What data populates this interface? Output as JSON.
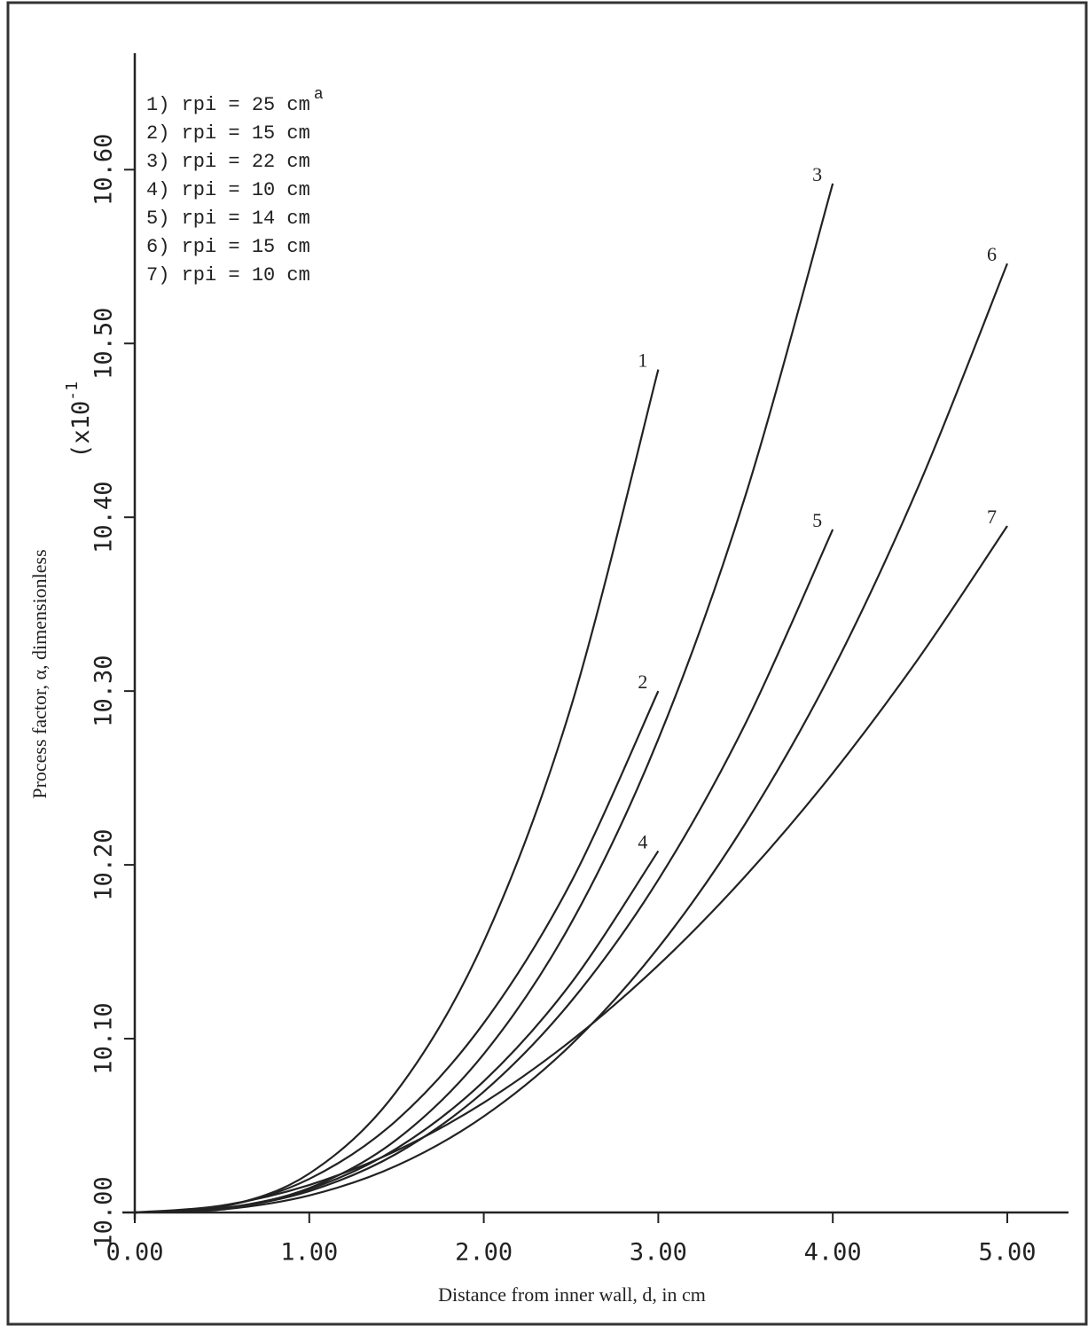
{
  "chart_data": {
    "type": "line",
    "x_label": "Distance from inner wall, d, in cm",
    "y_label": "Process factor, α, dimensionless",
    "y_multiplier": "(x10",
    "y_multiplier_exponent": "-1",
    "legend_superscript": "a",
    "xlim": [
      0,
      5.3
    ],
    "ylim": [
      10,
      10.667
    ],
    "xticks": [
      {
        "value": 0,
        "label": "0.00"
      },
      {
        "value": 1,
        "label": "1.00"
      },
      {
        "value": 2,
        "label": "2.00"
      },
      {
        "value": 3,
        "label": "3.00"
      },
      {
        "value": 4,
        "label": "4.00"
      },
      {
        "value": 5,
        "label": "5.00"
      }
    ],
    "yticks": [
      {
        "value": 10,
        "label": "10.00"
      },
      {
        "value": 10.1,
        "label": "10.10"
      },
      {
        "value": 10.2,
        "label": "10.20"
      },
      {
        "value": 10.3,
        "label": "10.30"
      },
      {
        "value": 10.4,
        "label": "10.40"
      },
      {
        "value": 10.5,
        "label": "10.50"
      },
      {
        "value": 10.6,
        "label": "10.60"
      }
    ],
    "series": [
      {
        "name": "1) rpi = 25 cm",
        "label": "1",
        "color": "#222",
        "x": [
          0,
          0.5,
          1,
          1.5,
          2,
          2.5,
          3
        ],
        "values": [
          10,
          10.0032,
          10.0224,
          10.0697,
          10.1558,
          10.291,
          10.485
        ]
      },
      {
        "name": "2) rpi = 15 cm",
        "label": "2",
        "color": "#222",
        "x": [
          0,
          0.5,
          1,
          1.5,
          2,
          2.5,
          3
        ],
        "values": [
          10,
          10.0034,
          10.0193,
          10.053,
          10.109,
          10.19,
          10.3
        ]
      },
      {
        "name": "3) rpi = 22 cm",
        "label": "3",
        "color": "#222",
        "x": [
          0,
          0.5,
          1,
          1.5,
          2,
          2.5,
          3,
          3.5,
          4
        ],
        "values": [
          10,
          10.0022,
          10.014,
          10.0419,
          10.0912,
          10.1664,
          10.2723,
          10.4126,
          10.592
        ]
      },
      {
        "name": "4) rpi = 10 cm",
        "label": "4",
        "color": "#222",
        "x": [
          0,
          0.5,
          1,
          1.5,
          2,
          2.5,
          3
        ],
        "values": [
          10,
          10.0024,
          10.0134,
          10.0368,
          10.0755,
          10.1319,
          10.208
        ]
      },
      {
        "name": "5) rpi = 14 cm",
        "label": "5",
        "color": "#222",
        "x": [
          0,
          0.5,
          1,
          1.5,
          2,
          2.5,
          3,
          3.5,
          4
        ],
        "values": [
          10,
          10.0022,
          10.0123,
          10.0338,
          10.0695,
          10.1214,
          10.1914,
          10.2814,
          10.393
        ]
      },
      {
        "name": "6) rpi = 15 cm",
        "label": "6",
        "color": "#222",
        "x": [
          0,
          0.5,
          1,
          1.5,
          2,
          2.5,
          3,
          3.5,
          4,
          4.5,
          5
        ],
        "values": [
          10,
          10.0017,
          10.0098,
          10.0269,
          10.0553,
          10.0965,
          10.1523,
          10.2239,
          10.3123,
          10.4199,
          10.546
        ]
      },
      {
        "name": "7) rpi = 10 cm",
        "label": "7",
        "color": "#222",
        "x": [
          0,
          0.5,
          1,
          1.5,
          2,
          2.5,
          3,
          3.5,
          4,
          4.5,
          5
        ],
        "values": [
          10,
          10.004,
          10.0158,
          10.0356,
          10.0632,
          10.0988,
          10.1422,
          10.1936,
          10.2528,
          10.32,
          10.395
        ]
      }
    ]
  }
}
